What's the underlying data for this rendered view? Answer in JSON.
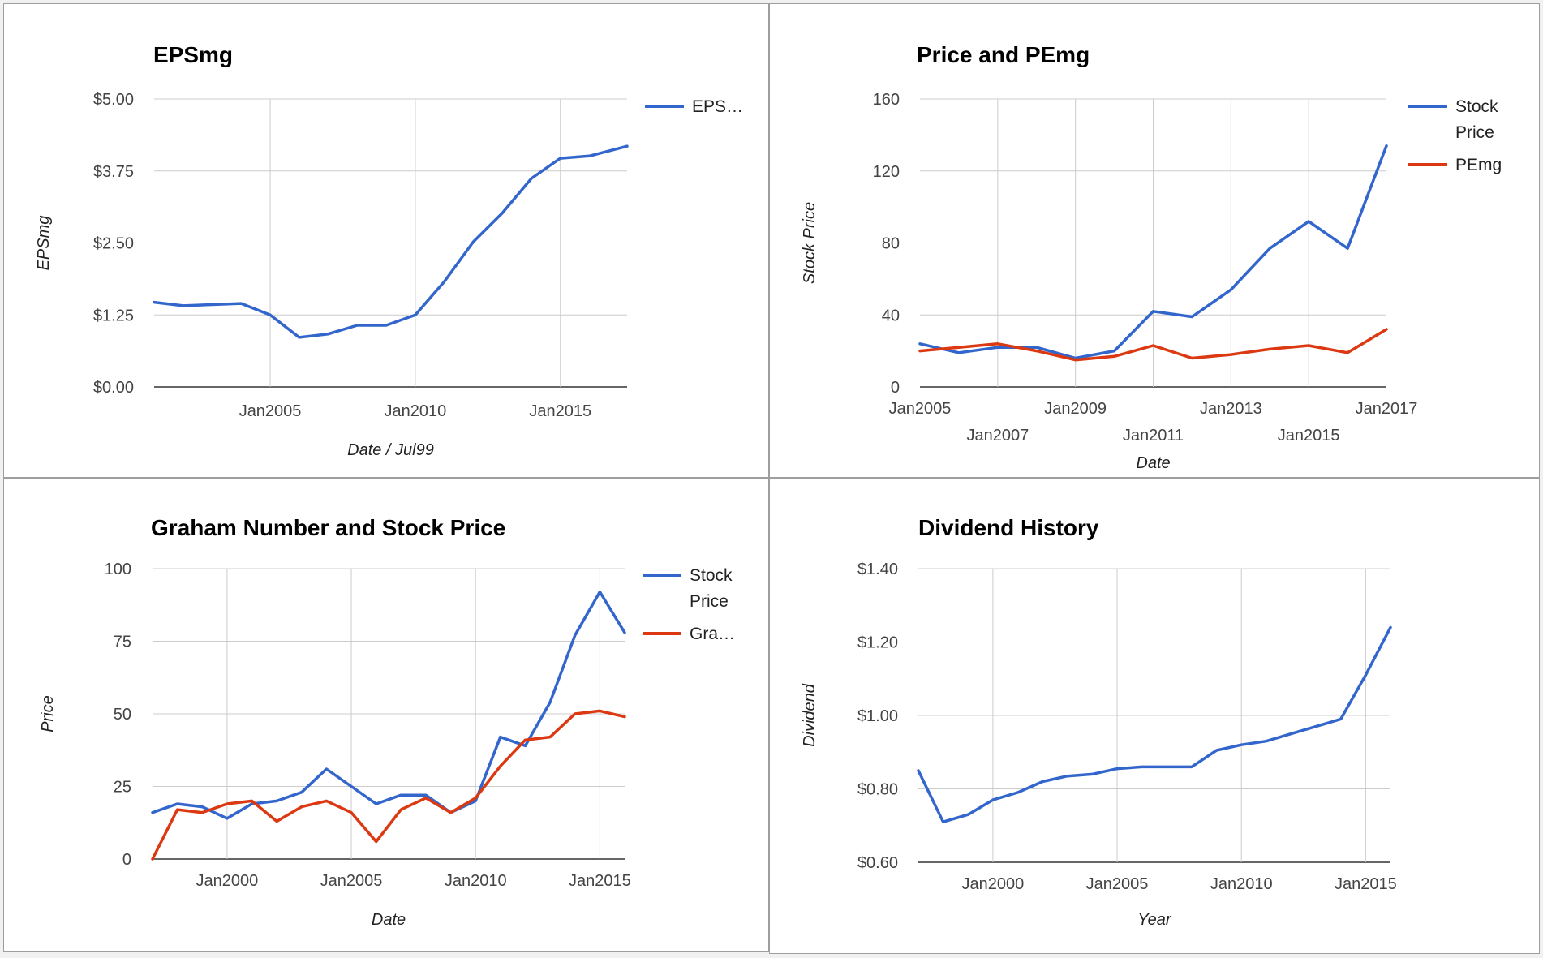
{
  "chart_data": [
    {
      "type": "line",
      "title": "EPSmg",
      "xlabel": "Date / Jul99",
      "ylabel": "EPSmg",
      "x_type": "year",
      "xlim": [
        2001,
        2017.3
      ],
      "ylim": [
        0,
        5
      ],
      "x_ticks": [
        {
          "v": 2005,
          "label": "Jan2005"
        },
        {
          "v": 2010,
          "label": "Jan2010"
        },
        {
          "v": 2015,
          "label": "Jan2015"
        }
      ],
      "x_gridlines": [
        2005,
        2010,
        2015
      ],
      "y_ticks": [
        {
          "v": 0,
          "label": "$0.00"
        },
        {
          "v": 1.25,
          "label": "$1.25"
        },
        {
          "v": 2.5,
          "label": "$2.50"
        },
        {
          "v": 3.75,
          "label": "$3.75"
        },
        {
          "v": 5,
          "label": "$5.00"
        }
      ],
      "legend": "right",
      "series": [
        {
          "name": "EPS…",
          "color": "#3366cc",
          "x": [
            2001,
            2002,
            2003,
            2004,
            2005,
            2006,
            2007,
            2008,
            2009,
            2010,
            2011,
            2012,
            2013,
            2014,
            2015,
            2016,
            2017.3
          ],
          "y": [
            1.47,
            1.41,
            1.43,
            1.45,
            1.25,
            0.86,
            0.92,
            1.07,
            1.07,
            1.25,
            1.83,
            2.52,
            3.02,
            3.62,
            3.97,
            4.01,
            4.18
          ]
        }
      ]
    },
    {
      "type": "line",
      "title": "Price and PEmg",
      "xlabel": "Date",
      "ylabel": "Stock Price",
      "x_type": "year",
      "xlim": [
        2005,
        2017
      ],
      "ylim": [
        0,
        160
      ],
      "x_ticks": [
        {
          "v": 2005,
          "label": "Jan2005",
          "row": 0
        },
        {
          "v": 2007,
          "label": "Jan2007",
          "row": 1
        },
        {
          "v": 2009,
          "label": "Jan2009",
          "row": 0
        },
        {
          "v": 2011,
          "label": "Jan2011",
          "row": 1
        },
        {
          "v": 2013,
          "label": "Jan2013",
          "row": 0
        },
        {
          "v": 2015,
          "label": "Jan2015",
          "row": 1
        },
        {
          "v": 2017,
          "label": "Jan2017",
          "row": 0
        }
      ],
      "x_gridlines": [
        2007,
        2009,
        2011,
        2013,
        2015
      ],
      "y_ticks": [
        {
          "v": 0,
          "label": "0"
        },
        {
          "v": 40,
          "label": "40"
        },
        {
          "v": 80,
          "label": "80"
        },
        {
          "v": 120,
          "label": "120"
        },
        {
          "v": 160,
          "label": "160"
        }
      ],
      "legend": "right",
      "series": [
        {
          "name": "Stock Price",
          "legend_lines": [
            "Stock",
            "Price"
          ],
          "color": "#3366cc",
          "x": [
            2005,
            2006,
            2007,
            2008,
            2009,
            2010,
            2011,
            2012,
            2013,
            2014,
            2015,
            2016,
            2017
          ],
          "y": [
            24,
            19,
            22,
            22,
            16,
            20,
            42,
            39,
            54,
            77,
            92,
            77,
            134
          ]
        },
        {
          "name": "PEmg",
          "color": "#dc3912",
          "x": [
            2005,
            2006,
            2007,
            2008,
            2009,
            2010,
            2011,
            2012,
            2013,
            2014,
            2015,
            2016,
            2017
          ],
          "y": [
            20,
            22,
            24,
            20,
            15,
            17,
            23,
            16,
            18,
            21,
            23,
            19,
            32
          ]
        }
      ]
    },
    {
      "type": "line",
      "title": "Graham Number and Stock Price",
      "xlabel": "Date",
      "ylabel": "Price",
      "x_type": "year",
      "xlim": [
        1997,
        2016
      ],
      "ylim": [
        0,
        100
      ],
      "x_ticks": [
        {
          "v": 2000,
          "label": "Jan2000"
        },
        {
          "v": 2005,
          "label": "Jan2005"
        },
        {
          "v": 2010,
          "label": "Jan2010"
        },
        {
          "v": 2015,
          "label": "Jan2015"
        }
      ],
      "x_gridlines": [
        2000,
        2005,
        2010,
        2015
      ],
      "y_ticks": [
        {
          "v": 0,
          "label": "0"
        },
        {
          "v": 25,
          "label": "25"
        },
        {
          "v": 50,
          "label": "50"
        },
        {
          "v": 75,
          "label": "75"
        },
        {
          "v": 100,
          "label": "100"
        }
      ],
      "legend": "right",
      "series": [
        {
          "name": "Stock Price",
          "legend_lines": [
            "Stock",
            "Price"
          ],
          "color": "#3366cc",
          "x": [
            1997,
            1998,
            1999,
            2000,
            2001,
            2002,
            2003,
            2004,
            2005,
            2006,
            2007,
            2008,
            2009,
            2010,
            2011,
            2012,
            2013,
            2014,
            2015,
            2016
          ],
          "y": [
            16,
            19,
            18,
            14,
            19,
            20,
            23,
            31,
            25,
            19,
            22,
            22,
            16,
            20,
            42,
            39,
            54,
            77,
            92,
            78
          ]
        },
        {
          "name": "Gra…",
          "color": "#dc3912",
          "x": [
            1997,
            1998,
            1999,
            2000,
            2001,
            2002,
            2003,
            2004,
            2005,
            2006,
            2007,
            2008,
            2009,
            2010,
            2011,
            2012,
            2013,
            2014,
            2015,
            2016
          ],
          "y": [
            0,
            17,
            16,
            19,
            20,
            13,
            18,
            20,
            16,
            6,
            17,
            21,
            16,
            21,
            32,
            41,
            42,
            50,
            51,
            49
          ]
        }
      ]
    },
    {
      "type": "line",
      "title": "Dividend History",
      "xlabel": "Year",
      "ylabel": "Dividend",
      "x_type": "year",
      "xlim": [
        1997,
        2016
      ],
      "ylim": [
        0.6,
        1.4
      ],
      "x_ticks": [
        {
          "v": 2000,
          "label": "Jan2000"
        },
        {
          "v": 2005,
          "label": "Jan2005"
        },
        {
          "v": 2010,
          "label": "Jan2010"
        },
        {
          "v": 2015,
          "label": "Jan2015"
        }
      ],
      "x_gridlines": [
        2000,
        2005,
        2010,
        2015
      ],
      "y_ticks": [
        {
          "v": 0.6,
          "label": "$0.60"
        },
        {
          "v": 0.8,
          "label": "$0.80"
        },
        {
          "v": 1.0,
          "label": "$1.00"
        },
        {
          "v": 1.2,
          "label": "$1.20"
        },
        {
          "v": 1.4,
          "label": "$1.40"
        }
      ],
      "legend": "none",
      "series": [
        {
          "color": "#3366cc",
          "x": [
            1997,
            1998,
            1999,
            2000,
            2001,
            2002,
            2003,
            2004,
            2005,
            2006,
            2007,
            2008,
            2009,
            2010,
            2011,
            2012,
            2013,
            2014,
            2015,
            2016
          ],
          "y": [
            0.85,
            0.71,
            0.73,
            0.77,
            0.79,
            0.82,
            0.835,
            0.84,
            0.855,
            0.86,
            0.86,
            0.86,
            0.905,
            0.92,
            0.93,
            0.95,
            0.97,
            0.99,
            1.11,
            1.24
          ]
        }
      ]
    }
  ]
}
